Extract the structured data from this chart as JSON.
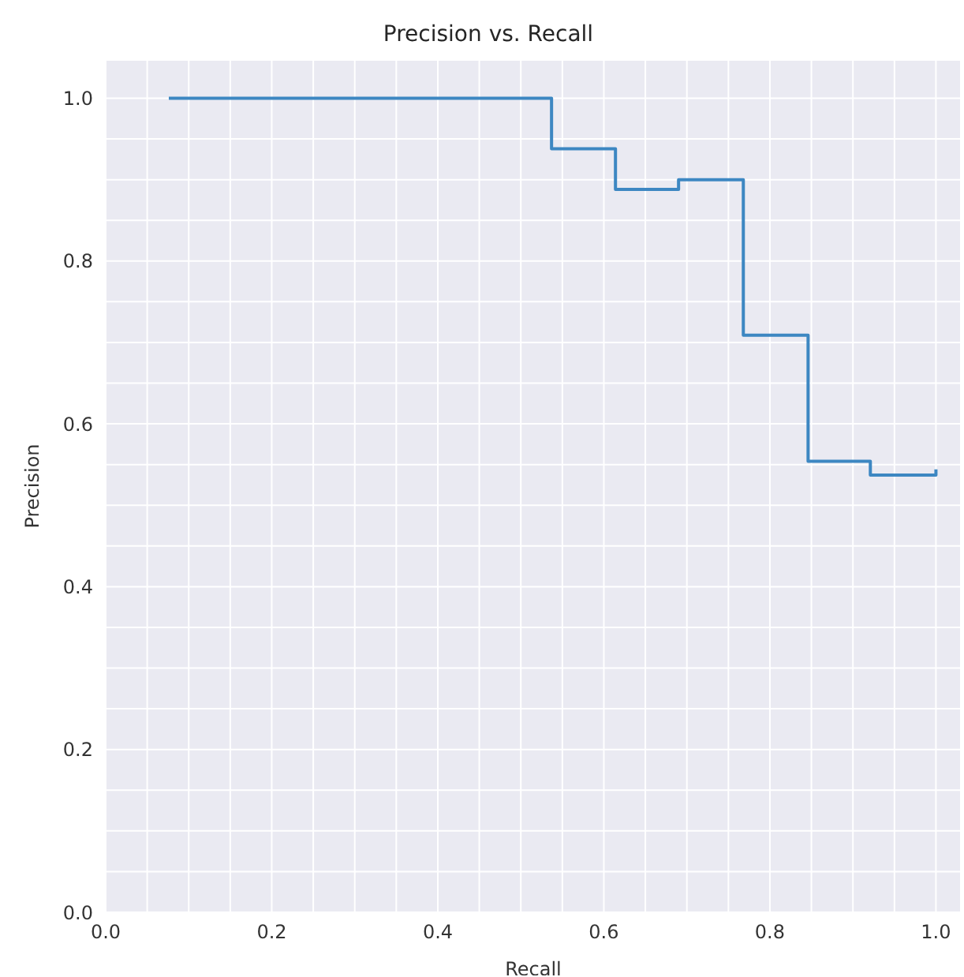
{
  "chart_data": {
    "type": "step",
    "title": "Precision vs. Recall",
    "xlabel": "Recall",
    "ylabel": "Precision",
    "x": [
      0.076,
      0.537,
      0.614,
      0.69,
      0.768,
      0.846,
      0.921,
      1.0
    ],
    "series": [
      {
        "color": "#3d87c2",
        "values": [
          1.0,
          0.938,
          0.888,
          0.9,
          0.709,
          0.554,
          0.537,
          0.544
        ]
      }
    ],
    "xlim": [
      0,
      1.03
    ],
    "ylim": [
      0,
      1.047
    ],
    "xticks": [
      {
        "value": 0,
        "label": "0.0"
      },
      {
        "value": 0.05,
        "label": null
      },
      {
        "value": 0.1,
        "label": null
      },
      {
        "value": 0.15,
        "label": null
      },
      {
        "value": 0.2,
        "label": "0.2"
      },
      {
        "value": 0.25,
        "label": null
      },
      {
        "value": 0.3,
        "label": null
      },
      {
        "value": 0.35,
        "label": null
      },
      {
        "value": 0.4,
        "label": "0.4"
      },
      {
        "value": 0.45,
        "label": null
      },
      {
        "value": 0.5,
        "label": null
      },
      {
        "value": 0.55,
        "label": null
      },
      {
        "value": 0.6,
        "label": "0.6"
      },
      {
        "value": 0.65,
        "label": null
      },
      {
        "value": 0.7,
        "label": null
      },
      {
        "value": 0.75,
        "label": null
      },
      {
        "value": 0.8,
        "label": "0.8"
      },
      {
        "value": 0.85,
        "label": null
      },
      {
        "value": 0.9,
        "label": null
      },
      {
        "value": 0.95,
        "label": null
      },
      {
        "value": 1.0,
        "label": "1.0"
      }
    ],
    "yticks": [
      {
        "value": 0,
        "label": "0.0"
      },
      {
        "value": 0.05,
        "label": null
      },
      {
        "value": 0.1,
        "label": null
      },
      {
        "value": 0.15,
        "label": null
      },
      {
        "value": 0.2,
        "label": "0.2"
      },
      {
        "value": 0.25,
        "label": null
      },
      {
        "value": 0.3,
        "label": null
      },
      {
        "value": 0.35,
        "label": null
      },
      {
        "value": 0.4,
        "label": "0.4"
      },
      {
        "value": 0.45,
        "label": null
      },
      {
        "value": 0.5,
        "label": null
      },
      {
        "value": 0.55,
        "label": null
      },
      {
        "value": 0.6,
        "label": "0.6"
      },
      {
        "value": 0.65,
        "label": null
      },
      {
        "value": 0.7,
        "label": null
      },
      {
        "value": 0.75,
        "label": null
      },
      {
        "value": 0.8,
        "label": "0.8"
      },
      {
        "value": 0.85,
        "label": null
      },
      {
        "value": 0.9,
        "label": null
      },
      {
        "value": 0.95,
        "label": null
      },
      {
        "value": 1.0,
        "label": "1.0"
      }
    ],
    "grid": true,
    "marker": "none",
    "line_style": "solid"
  }
}
